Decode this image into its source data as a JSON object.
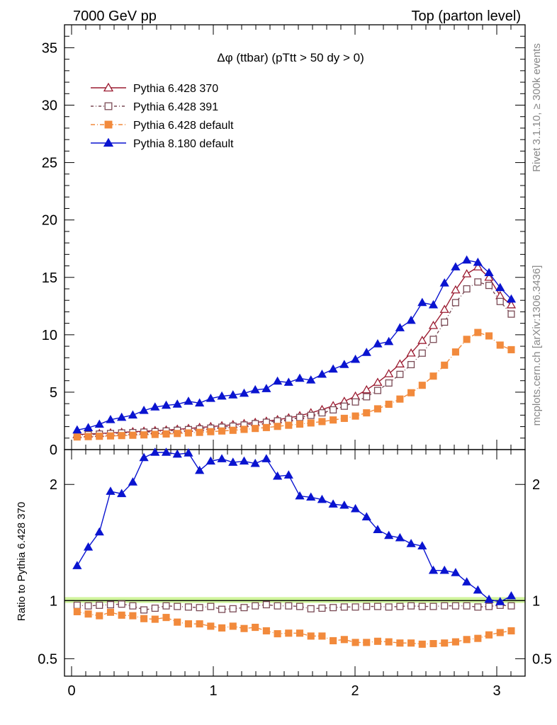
{
  "header": {
    "left": "7000 GeV pp",
    "right": "Top (parton level)"
  },
  "side_labels": {
    "rivet": "Rivet 3.1.10, ≥ 300k events",
    "mcplots": "mcplots.cern.ch [arXiv:1306.3436]"
  },
  "colors": {
    "p370": "#9b1b30",
    "p391": "#7a4a55",
    "pdef": "#f28a3c",
    "p8": "#0a14d0",
    "band": "#c8f28c"
  },
  "chart_data": [
    {
      "type": "line",
      "title": "Δφ (ttbar) (pTtt > 50 dy > 0)",
      "ylim": [
        0,
        37
      ],
      "xlim": [
        -0.05,
        3.2
      ],
      "yticks": [
        0,
        5,
        10,
        15,
        20,
        25,
        30,
        35
      ],
      "legend_position": "top-left",
      "x": [
        0.0393,
        0.1178,
        0.1963,
        0.2749,
        0.3534,
        0.432,
        0.5105,
        0.589,
        0.6676,
        0.7461,
        0.8247,
        0.9032,
        0.9817,
        1.0603,
        1.1388,
        1.2174,
        1.2959,
        1.3744,
        1.453,
        1.5315,
        1.6101,
        1.6886,
        1.7671,
        1.8457,
        1.9242,
        2.0028,
        2.0813,
        2.1598,
        2.2384,
        2.3169,
        2.3955,
        2.474,
        2.5525,
        2.6311,
        2.7096,
        2.7882,
        2.8667,
        2.9452,
        3.0238,
        3.1023
      ],
      "series": [
        {
          "name": "Pythia 6.428 370",
          "color_key": "p370",
          "marker": "open-triangle",
          "dash": "",
          "values": [
            1.3,
            1.36,
            1.4,
            1.45,
            1.5,
            1.55,
            1.6,
            1.65,
            1.7,
            1.77,
            1.84,
            1.92,
            2.0,
            2.08,
            2.17,
            2.26,
            2.36,
            2.47,
            2.6,
            2.76,
            2.95,
            3.2,
            3.48,
            3.82,
            4.2,
            4.65,
            5.2,
            5.85,
            6.6,
            7.45,
            8.4,
            9.5,
            10.8,
            12.2,
            13.9,
            15.3,
            15.9,
            15.0,
            13.4,
            12.6
          ]
        },
        {
          "name": "Pythia 6.428 391",
          "color_key": "p391",
          "marker": "open-square",
          "dash": "4,3,1,3",
          "values": [
            1.25,
            1.3,
            1.35,
            1.4,
            1.45,
            1.48,
            1.52,
            1.56,
            1.62,
            1.68,
            1.74,
            1.8,
            1.87,
            1.95,
            2.04,
            2.14,
            2.26,
            2.38,
            2.5,
            2.64,
            2.8,
            2.98,
            3.2,
            3.46,
            3.78,
            4.15,
            4.6,
            5.15,
            5.8,
            6.55,
            7.4,
            8.4,
            9.6,
            11.1,
            12.8,
            14.0,
            14.6,
            14.3,
            12.9,
            11.8
          ]
        },
        {
          "name": "Pythia 6.428 default",
          "color_key": "pdef",
          "marker": "filled-square",
          "dash": "6,3,1,3",
          "values": [
            1.1,
            1.13,
            1.16,
            1.19,
            1.22,
            1.25,
            1.28,
            1.32,
            1.36,
            1.4,
            1.45,
            1.5,
            1.56,
            1.62,
            1.68,
            1.76,
            1.84,
            1.92,
            2.02,
            2.12,
            2.22,
            2.32,
            2.44,
            2.58,
            2.72,
            2.92,
            3.2,
            3.55,
            3.95,
            4.4,
            4.95,
            5.6,
            6.4,
            7.35,
            8.5,
            9.6,
            10.2,
            9.9,
            9.1,
            8.7
          ]
        },
        {
          "name": "Pythia 8.180 default",
          "color_key": "p8",
          "marker": "filled-triangle",
          "dash": "",
          "values": [
            1.7,
            1.9,
            2.2,
            2.6,
            2.8,
            3.0,
            3.4,
            3.7,
            3.85,
            3.95,
            4.2,
            4.05,
            4.45,
            4.65,
            4.75,
            4.9,
            5.2,
            5.3,
            5.95,
            5.85,
            6.2,
            6.05,
            6.55,
            7.0,
            7.4,
            7.85,
            8.45,
            9.2,
            9.4,
            10.6,
            11.25,
            12.8,
            12.6,
            14.5,
            15.9,
            16.5,
            16.3,
            15.4,
            14.1,
            13.1
          ]
        }
      ]
    },
    {
      "type": "line",
      "ylabel": "Ratio to Pythia 6.428 370",
      "ylim": [
        0.35,
        2.3
      ],
      "xlim": [
        -0.05,
        3.2
      ],
      "yticks": [
        0.5,
        1,
        2
      ],
      "xticks": [
        0,
        1,
        2,
        3
      ],
      "reference": 1.0,
      "band": [
        0.98,
        1.03
      ],
      "x": [
        0.0393,
        0.1178,
        0.1963,
        0.2749,
        0.3534,
        0.432,
        0.5105,
        0.589,
        0.6676,
        0.7461,
        0.8247,
        0.9032,
        0.9817,
        1.0603,
        1.1388,
        1.2174,
        1.2959,
        1.3744,
        1.453,
        1.5315,
        1.6101,
        1.6886,
        1.7671,
        1.8457,
        1.9242,
        2.0028,
        2.0813,
        2.1598,
        2.2384,
        2.3169,
        2.3955,
        2.474,
        2.5525,
        2.6311,
        2.7096,
        2.7882,
        2.8667,
        2.9452,
        3.0238,
        3.1023
      ],
      "series": [
        {
          "name": "Pythia 6.428 391",
          "color_key": "p391",
          "marker": "open-square",
          "dash": "4,3,1,3",
          "values": [
            0.96,
            0.955,
            0.96,
            0.965,
            0.97,
            0.955,
            0.92,
            0.935,
            0.955,
            0.95,
            0.945,
            0.94,
            0.95,
            0.925,
            0.93,
            0.94,
            0.955,
            0.965,
            0.955,
            0.955,
            0.95,
            0.93,
            0.935,
            0.94,
            0.945,
            0.945,
            0.95,
            0.95,
            0.945,
            0.95,
            0.955,
            0.95,
            0.95,
            0.955,
            0.955,
            0.955,
            0.945,
            0.95,
            0.96,
            0.955
          ]
        },
        {
          "name": "Pythia 6.428 default",
          "color_key": "pdef",
          "marker": "filled-square",
          "dash": "6,3,1,3",
          "values": [
            0.905,
            0.885,
            0.87,
            0.9,
            0.875,
            0.87,
            0.845,
            0.84,
            0.855,
            0.815,
            0.8,
            0.8,
            0.78,
            0.765,
            0.78,
            0.76,
            0.77,
            0.74,
            0.715,
            0.72,
            0.72,
            0.695,
            0.695,
            0.655,
            0.665,
            0.64,
            0.64,
            0.65,
            0.645,
            0.635,
            0.635,
            0.625,
            0.63,
            0.635,
            0.645,
            0.665,
            0.675,
            0.705,
            0.725,
            0.74
          ]
        },
        {
          "name": "Pythia 8.180 default",
          "color_key": "p8",
          "marker": "filled-triangle",
          "dash": "",
          "values": [
            1.3,
            1.46,
            1.59,
            1.94,
            1.92,
            2.02,
            2.23,
            2.28,
            2.28,
            2.26,
            2.27,
            2.12,
            2.2,
            2.22,
            2.19,
            2.2,
            2.18,
            2.22,
            2.07,
            2.08,
            1.9,
            1.89,
            1.87,
            1.83,
            1.82,
            1.79,
            1.72,
            1.61,
            1.56,
            1.54,
            1.49,
            1.47,
            1.26,
            1.26,
            1.24,
            1.16,
            1.09,
            1.01,
            0.99,
            1.04
          ]
        }
      ]
    }
  ]
}
